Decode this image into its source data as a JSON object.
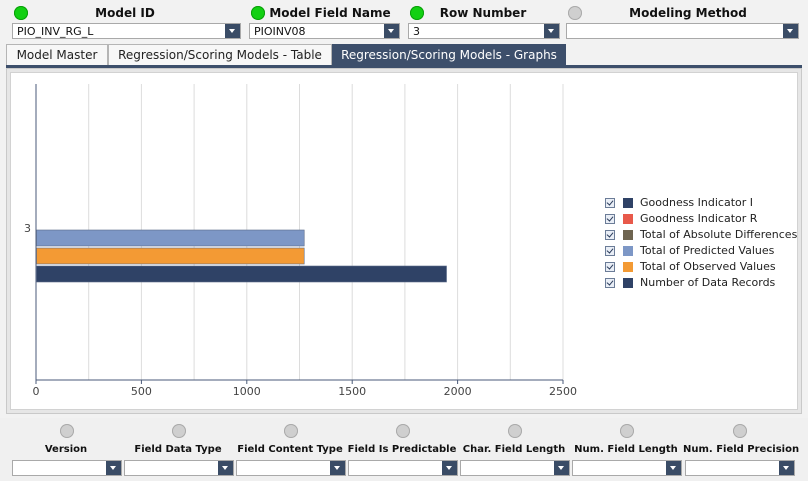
{
  "filters": [
    {
      "label": "Model ID",
      "value": "PIO_INV_RG_L",
      "status": "on"
    },
    {
      "label": "Model Field Name",
      "value": "PIOINV08",
      "status": "on"
    },
    {
      "label": "Row Number",
      "value": "3",
      "status": "on"
    },
    {
      "label": "Modeling Method",
      "value": "",
      "status": "off"
    }
  ],
  "tabs": [
    {
      "label": "Model Master",
      "active": false
    },
    {
      "label": "Regression/Scoring Models - Table",
      "active": false
    },
    {
      "label": "Regression/Scoring Models - Graphs",
      "active": true
    }
  ],
  "chart_data": {
    "type": "bar",
    "orientation": "horizontal",
    "categories": [
      "3"
    ],
    "series": [
      {
        "name": "Goodness Indicator I",
        "color": "#2f4266",
        "values": [
          0
        ]
      },
      {
        "name": "Goodness Indicator R",
        "color": "#e8594a",
        "values": [
          0
        ]
      },
      {
        "name": "Total of Absolute Differences",
        "color": "#6e6450",
        "values": [
          0
        ]
      },
      {
        "name": "Total of Predicted Values",
        "color": "#7d97c6",
        "values": [
          1270
        ]
      },
      {
        "name": "Total of Observed Values",
        "color": "#f39a34",
        "values": [
          1270
        ]
      },
      {
        "name": "Number of Data Records",
        "color": "#2f4266",
        "values": [
          1945
        ]
      }
    ],
    "xlim": [
      0,
      2500
    ],
    "xticks": [
      "0",
      "500",
      "1000",
      "1500",
      "2000",
      "2500"
    ],
    "grid": true,
    "legend_position": "right"
  },
  "bottom_fields": [
    {
      "label": "Version",
      "value": ""
    },
    {
      "label": "Field Data Type",
      "value": ""
    },
    {
      "label": "Field Content Type",
      "value": ""
    },
    {
      "label": "Field Is Predictable",
      "value": ""
    },
    {
      "label": "Char. Field Length",
      "value": ""
    },
    {
      "label": "Num. Field Length",
      "value": ""
    },
    {
      "label": "Num. Field Precision",
      "value": ""
    }
  ]
}
